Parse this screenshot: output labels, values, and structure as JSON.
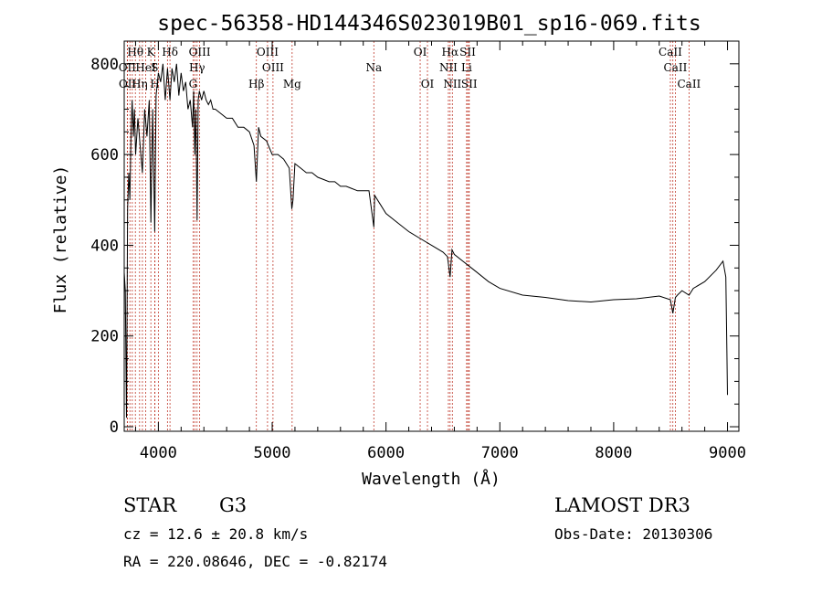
{
  "chart_data": {
    "type": "line",
    "title": "spec-56358-HD144346S023019B01_sp16-069.fits",
    "xlabel": "Wavelength (Å)",
    "ylabel": "Flux (relative)",
    "xlim": [
      3700,
      9100
    ],
    "ylim": [
      -10,
      850
    ],
    "x_ticks": [
      4000,
      5000,
      6000,
      7000,
      8000,
      9000
    ],
    "y_ticks": [
      0,
      200,
      400,
      600,
      800
    ],
    "x_tick_labels": [
      "4000",
      "5000",
      "6000",
      "7000",
      "8000",
      "9000"
    ],
    "y_tick_labels": [
      "0",
      "200",
      "400",
      "600",
      "800"
    ],
    "series": [
      {
        "name": "flux",
        "x": [
          3700,
          3710,
          3720,
          3730,
          3740,
          3750,
          3760,
          3770,
          3780,
          3790,
          3800,
          3820,
          3840,
          3860,
          3880,
          3900,
          3920,
          3934,
          3950,
          3968,
          3980,
          4000,
          4020,
          4040,
          4060,
          4080,
          4102,
          4120,
          4140,
          4160,
          4180,
          4200,
          4220,
          4240,
          4260,
          4280,
          4300,
          4310,
          4320,
          4330,
          4340,
          4350,
          4360,
          4380,
          4400,
          4420,
          4440,
          4460,
          4480,
          4500,
          4550,
          4600,
          4650,
          4700,
          4750,
          4800,
          4840,
          4861,
          4880,
          4900,
          4950,
          5000,
          5050,
          5100,
          5150,
          5172,
          5183,
          5200,
          5250,
          5300,
          5350,
          5400,
          5450,
          5500,
          5550,
          5600,
          5650,
          5700,
          5750,
          5800,
          5850,
          5893,
          5900,
          5950,
          6000,
          6100,
          6200,
          6300,
          6400,
          6500,
          6540,
          6563,
          6580,
          6600,
          6700,
          6800,
          6900,
          7000,
          7200,
          7400,
          7600,
          7800,
          8000,
          8200,
          8400,
          8498,
          8520,
          8542,
          8560,
          8600,
          8662,
          8700,
          8800,
          8900,
          8960,
          8985,
          8995,
          9000
        ],
        "values": [
          340,
          300,
          20,
          480,
          560,
          500,
          650,
          720,
          640,
          700,
          600,
          680,
          620,
          560,
          700,
          640,
          720,
          450,
          700,
          430,
          730,
          780,
          760,
          800,
          720,
          790,
          720,
          790,
          760,
          800,
          730,
          780,
          740,
          760,
          700,
          720,
          660,
          740,
          600,
          700,
          455,
          720,
          740,
          720,
          740,
          720,
          710,
          720,
          700,
          700,
          690,
          680,
          680,
          660,
          660,
          650,
          620,
          540,
          660,
          640,
          630,
          600,
          600,
          590,
          570,
          480,
          500,
          580,
          570,
          560,
          560,
          550,
          545,
          540,
          540,
          530,
          530,
          525,
          520,
          520,
          520,
          440,
          510,
          490,
          470,
          450,
          430,
          415,
          400,
          385,
          375,
          330,
          390,
          380,
          360,
          340,
          320,
          305,
          290,
          285,
          278,
          275,
          280,
          282,
          288,
          280,
          250,
          285,
          290,
          300,
          290,
          305,
          320,
          345,
          365,
          330,
          160,
          70
        ]
      }
    ],
    "lines_left_top": [
      {
        "label": "Hθ",
        "wl": 3798
      },
      {
        "label": "K",
        "wl": 3934
      },
      {
        "label": "Hδ",
        "wl": 4102
      },
      {
        "label": "OIII",
        "wl": 4363
      },
      {
        "label": "OIII",
        "wl": 4959
      },
      {
        "label": "OI",
        "wl": 6300
      },
      {
        "label": "Hα",
        "wl": 6563
      },
      {
        "label": "SII",
        "wl": 6717
      },
      {
        "label": "CaII",
        "wl": 8498
      }
    ],
    "lines_left_mid": [
      {
        "label": "OII",
        "wl": 3727
      },
      {
        "label": "HeI",
        "wl": 3889
      },
      {
        "label": "S",
        "wl": 3968
      },
      {
        "label": "Hγ",
        "wl": 4340
      },
      {
        "label": "OIII",
        "wl": 5007
      },
      {
        "label": "Na",
        "wl": 5893
      },
      {
        "label": "NII",
        "wl": 6548
      },
      {
        "label": "Li",
        "wl": 6708
      },
      {
        "label": "CaII",
        "wl": 8542
      }
    ],
    "lines_left_low": [
      {
        "label": "OII",
        "wl": 3729
      },
      {
        "label": "Hη",
        "wl": 3835
      },
      {
        "label": "H",
        "wl": 3970
      },
      {
        "label": "G",
        "wl": 4305
      },
      {
        "label": "Hβ",
        "wl": 4861
      },
      {
        "label": "Mg",
        "wl": 5175
      },
      {
        "label": "OI",
        "wl": 6364
      },
      {
        "label": "NII",
        "wl": 6583
      },
      {
        "label": "SII",
        "wl": 6731
      },
      {
        "label": "CaII",
        "wl": 8662
      }
    ],
    "extra_marker_wl": [
      3750,
      3771,
      3860,
      4000,
      4080,
      4320,
      6730,
      8520
    ]
  },
  "info": {
    "class_label": "STAR",
    "subclass": "G3",
    "survey": "LAMOST DR3",
    "redshift": "cz = 12.6 ± 20.8 km/s",
    "obs_date": "Obs-Date: 20130306",
    "coords": "RA = 220.08646, DEC =  -0.82174"
  },
  "colors": {
    "line_marker": "#c0392b",
    "spectrum": "#000000"
  }
}
